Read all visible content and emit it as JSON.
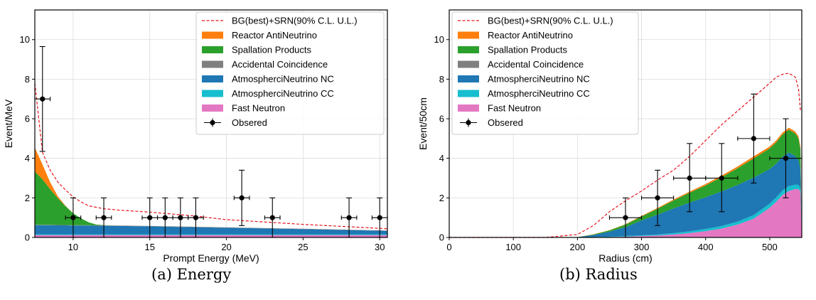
{
  "figure": {
    "captions": [
      "(a) Energy",
      "(b) Radius"
    ]
  },
  "legend_entries": [
    {
      "label": "BG(best)+SRN(90% C.L. U.L.)",
      "kind": "dashed",
      "color": "#e8141c"
    },
    {
      "label": "Reactor AntiNeutrino",
      "kind": "patch",
      "color": "#ff7f0e"
    },
    {
      "label": "Spallation Products",
      "kind": "patch",
      "color": "#2ca02c"
    },
    {
      "label": "Accidental Coincidence",
      "kind": "patch",
      "color": "#7f7f7f"
    },
    {
      "label": "AtmospherciNeutrino NC",
      "kind": "patch",
      "color": "#1f77b4"
    },
    {
      "label": "AtmospherciNeutrino CC",
      "kind": "patch",
      "color": "#17becf"
    },
    {
      "label": "Fast Neutron",
      "kind": "patch",
      "color": "#e377c2"
    },
    {
      "label": "Obsered",
      "kind": "errorbar",
      "color": "#000000"
    }
  ],
  "chart_data": [
    {
      "type": "area",
      "xlabel": "Prompt Energy (MeV)",
      "ylabel": "Event/MeV",
      "xlim": [
        7.5,
        30.5
      ],
      "ylim": [
        0,
        11.5
      ],
      "xticks": [
        10,
        15,
        20,
        25,
        30
      ],
      "yticks": [
        0,
        2,
        4,
        6,
        8,
        10
      ],
      "grid": true,
      "legend_position": "top-right",
      "x": [
        7.5,
        8,
        8.5,
        9,
        9.5,
        10,
        10.5,
        11,
        11.5,
        12,
        13,
        15,
        20,
        25,
        30,
        30.5
      ],
      "series": [
        {
          "name": "Fast Neutron",
          "values": [
            0.12,
            0.12,
            0.12,
            0.12,
            0.12,
            0.12,
            0.12,
            0.12,
            0.12,
            0.12,
            0.12,
            0.12,
            0.12,
            0.12,
            0.12,
            0.12
          ]
        },
        {
          "name": "AtmospherciNeutrino CC",
          "values": [
            0.04,
            0.04,
            0.04,
            0.04,
            0.04,
            0.04,
            0.04,
            0.04,
            0.04,
            0.04,
            0.04,
            0.04,
            0.04,
            0.04,
            0.04,
            0.04
          ]
        },
        {
          "name": "AtmospherciNeutrino NC",
          "values": [
            0.46,
            0.46,
            0.46,
            0.45,
            0.45,
            0.44,
            0.44,
            0.44,
            0.43,
            0.43,
            0.42,
            0.4,
            0.33,
            0.26,
            0.18,
            0.17
          ]
        },
        {
          "name": "Accidental Coincidence",
          "values": [
            0.02,
            0.02,
            0.02,
            0.02,
            0.02,
            0.02,
            0.02,
            0.02,
            0.02,
            0.02,
            0.02,
            0.02,
            0.02,
            0.02,
            0.02,
            0.02
          ]
        },
        {
          "name": "Spallation Products",
          "values": [
            2.7,
            2.3,
            1.8,
            1.35,
            0.95,
            0.6,
            0.35,
            0.15,
            0.04,
            0.01,
            0,
            0,
            0,
            0,
            0,
            0
          ]
        },
        {
          "name": "Reactor AntiNeutrino",
          "values": [
            1.2,
            0.75,
            0.35,
            0.1,
            0.02,
            0,
            0,
            0,
            0,
            0,
            0,
            0,
            0,
            0,
            0,
            0
          ]
        }
      ],
      "line": {
        "name": "BG(best)+SRN(90% C.L. U.L.)",
        "x": [
          7.5,
          8,
          8.5,
          9,
          9.5,
          10,
          10.5,
          11,
          12,
          13,
          15,
          18,
          20,
          25,
          30,
          30.5
        ],
        "y": [
          7.8,
          4.3,
          3.4,
          2.8,
          2.4,
          2.05,
          1.8,
          1.6,
          1.45,
          1.38,
          1.28,
          1.08,
          0.9,
          0.66,
          0.46,
          0.44
        ]
      },
      "observed": {
        "name": "Obsered",
        "points": [
          {
            "x": 8,
            "y": 7,
            "xerr": 0.5,
            "ylo": 4.35,
            "yhi": 9.65
          },
          {
            "x": 10,
            "y": 1,
            "xerr": 0.5,
            "ylo": 0,
            "yhi": 2.0
          },
          {
            "x": 12,
            "y": 1,
            "xerr": 0.5,
            "ylo": 0,
            "yhi": 2.0
          },
          {
            "x": 15,
            "y": 1,
            "xerr": 0.5,
            "ylo": 0,
            "yhi": 2.0
          },
          {
            "x": 16,
            "y": 1,
            "xerr": 0.5,
            "ylo": 0,
            "yhi": 2.0
          },
          {
            "x": 17,
            "y": 1,
            "xerr": 0.5,
            "ylo": 0,
            "yhi": 2.0
          },
          {
            "x": 18,
            "y": 1,
            "xerr": 0.5,
            "ylo": 0,
            "yhi": 2.0
          },
          {
            "x": 21,
            "y": 2,
            "xerr": 0.5,
            "ylo": 0.6,
            "yhi": 3.4
          },
          {
            "x": 23,
            "y": 1,
            "xerr": 0.5,
            "ylo": 0,
            "yhi": 2.0
          },
          {
            "x": 28,
            "y": 1,
            "xerr": 0.5,
            "ylo": 0,
            "yhi": 2.0
          },
          {
            "x": 30,
            "y": 1,
            "xerr": 0.5,
            "ylo": 0,
            "yhi": 2.0
          }
        ]
      }
    },
    {
      "type": "area",
      "xlabel": "Radius (cm)",
      "ylabel": "Event/50cm",
      "xlim": [
        0,
        550
      ],
      "ylim": [
        0,
        11.5
      ],
      "xticks": [
        0,
        100,
        200,
        300,
        400,
        500
      ],
      "yticks": [
        0,
        2,
        4,
        6,
        8,
        10
      ],
      "grid": true,
      "legend_position": "top-left",
      "x": [
        0,
        100,
        200,
        225,
        250,
        275,
        300,
        325,
        350,
        375,
        400,
        425,
        450,
        475,
        500,
        510,
        520,
        530,
        540,
        545,
        548,
        550
      ],
      "series": [
        {
          "name": "Fast Neutron",
          "values": [
            0,
            0,
            0,
            0.01,
            0.02,
            0.04,
            0.07,
            0.1,
            0.15,
            0.22,
            0.32,
            0.45,
            0.65,
            0.95,
            1.5,
            1.8,
            2.15,
            2.35,
            2.45,
            2.45,
            2.3,
            0
          ]
        },
        {
          "name": "AtmospherciNeutrino CC",
          "values": [
            0,
            0,
            0,
            0.01,
            0.02,
            0.03,
            0.04,
            0.05,
            0.07,
            0.09,
            0.11,
            0.13,
            0.15,
            0.18,
            0.21,
            0.22,
            0.23,
            0.24,
            0.22,
            0.2,
            0.15,
            0
          ]
        },
        {
          "name": "AtmospherciNeutrino NC",
          "values": [
            0,
            0,
            0.02,
            0.1,
            0.25,
            0.45,
            0.75,
            1.0,
            1.25,
            1.45,
            1.6,
            1.75,
            1.85,
            1.9,
            1.75,
            1.7,
            1.7,
            1.71,
            1.43,
            1.25,
            1.0,
            0
          ]
        },
        {
          "name": "Accidental Coincidence",
          "values": [
            0,
            0,
            0,
            0,
            0,
            0,
            0,
            0,
            0,
            0,
            0,
            0,
            0,
            0,
            0,
            0,
            0,
            0,
            0,
            0,
            0,
            0
          ]
        },
        {
          "name": "Spallation Products",
          "values": [
            0,
            0,
            0,
            0.03,
            0.07,
            0.13,
            0.2,
            0.3,
            0.4,
            0.5,
            0.6,
            0.72,
            0.85,
            0.97,
            1.04,
            1.08,
            1.12,
            1.15,
            1.15,
            1.1,
            1.0,
            0
          ]
        },
        {
          "name": "Reactor AntiNeutrino",
          "values": [
            0,
            0,
            0,
            0.01,
            0.01,
            0.02,
            0.03,
            0.04,
            0.05,
            0.06,
            0.07,
            0.08,
            0.09,
            0.1,
            0.1,
            0.1,
            0.1,
            0.1,
            0.1,
            0.1,
            0.1,
            0
          ]
        }
      ],
      "line": {
        "name": "BG(best)+SRN(90% C.L. U.L.)",
        "x": [
          0,
          150,
          200,
          225,
          250,
          275,
          300,
          325,
          350,
          375,
          400,
          425,
          450,
          475,
          500,
          510,
          520,
          530,
          540,
          545,
          548
        ],
        "y": [
          0,
          0,
          0.15,
          0.6,
          1.3,
          1.85,
          2.35,
          2.9,
          3.4,
          4.1,
          4.9,
          5.7,
          6.4,
          7.1,
          7.8,
          8.1,
          8.25,
          8.3,
          8.1,
          7.5,
          6.4
        ]
      },
      "observed": {
        "name": "Obsered",
        "points": [
          {
            "x": 275,
            "y": 1,
            "xerr": 25,
            "ylo": 0,
            "yhi": 2.0
          },
          {
            "x": 325,
            "y": 2,
            "xerr": 25,
            "ylo": 0.6,
            "yhi": 3.4
          },
          {
            "x": 375,
            "y": 3,
            "xerr": 25,
            "ylo": 1.3,
            "yhi": 4.75
          },
          {
            "x": 425,
            "y": 3,
            "xerr": 25,
            "ylo": 1.3,
            "yhi": 4.75
          },
          {
            "x": 475,
            "y": 5,
            "xerr": 25,
            "ylo": 2.75,
            "yhi": 7.25
          },
          {
            "x": 525,
            "y": 4,
            "xerr": 25,
            "ylo": 2.0,
            "yhi": 6.0
          }
        ]
      }
    }
  ]
}
